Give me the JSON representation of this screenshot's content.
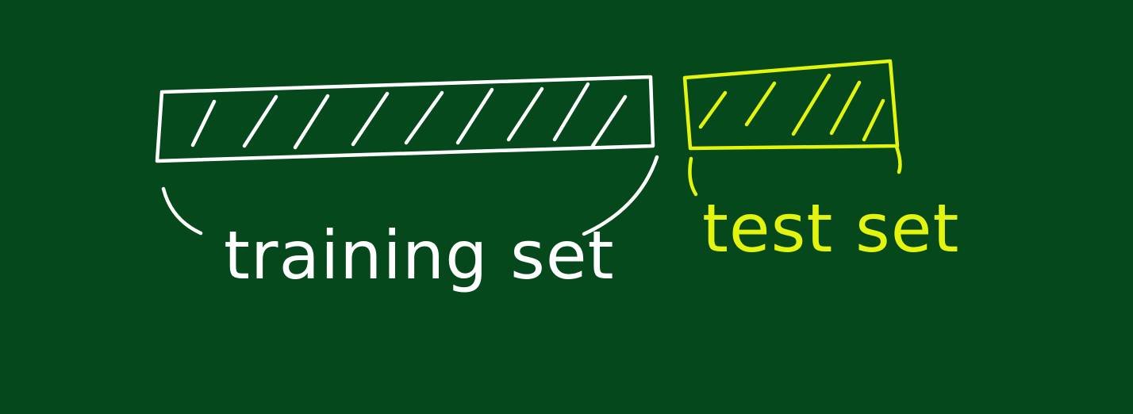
{
  "diagram": {
    "background_color": "#05481b",
    "training_set": {
      "label": "training set",
      "color": "#ffffff"
    },
    "test_set": {
      "label": "test set",
      "color": "#e3f50f"
    }
  }
}
